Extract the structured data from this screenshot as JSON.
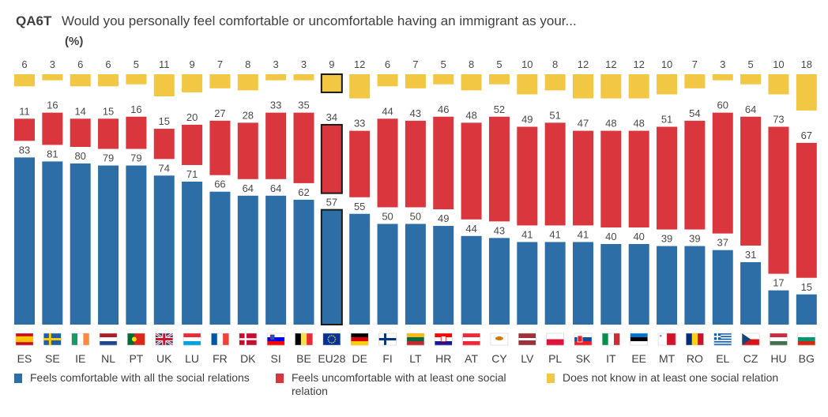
{
  "header": {
    "code": "QA6T",
    "title": "Would you personally feel comfortable or uncomfortable having an immigrant as your...",
    "unit": "(%)"
  },
  "colors": {
    "comfortable": "#2e6ea6",
    "uncomfortable": "#d9363e",
    "dont_know": "#f2c744",
    "highlight_border": "#1a1a1a"
  },
  "chart_data": {
    "type": "bar",
    "stacked": true,
    "categories": [
      "ES",
      "SE",
      "IE",
      "NL",
      "PT",
      "UK",
      "LU",
      "FR",
      "DK",
      "SI",
      "BE",
      "EU28",
      "DE",
      "FI",
      "LT",
      "HR",
      "AT",
      "CY",
      "LV",
      "PL",
      "SK",
      "IT",
      "EE",
      "MT",
      "RO",
      "EL",
      "CZ",
      "HU",
      "BG"
    ],
    "highlight": "EU28",
    "series": [
      {
        "name": "Feels comfortable with all the social relations",
        "values": [
          83,
          81,
          80,
          79,
          79,
          74,
          71,
          66,
          64,
          64,
          62,
          57,
          55,
          50,
          50,
          49,
          44,
          43,
          41,
          41,
          41,
          40,
          40,
          39,
          39,
          37,
          31,
          17,
          15
        ]
      },
      {
        "name": "Feels uncomfortable with at least one social relation",
        "values": [
          11,
          16,
          14,
          15,
          16,
          15,
          20,
          27,
          28,
          33,
          35,
          34,
          33,
          44,
          43,
          46,
          48,
          52,
          49,
          51,
          47,
          48,
          48,
          51,
          54,
          60,
          64,
          73,
          67
        ]
      },
      {
        "name": "Does not know in at least one social relation",
        "values": [
          6,
          3,
          6,
          6,
          5,
          11,
          9,
          7,
          8,
          3,
          3,
          9,
          12,
          6,
          7,
          5,
          8,
          5,
          10,
          8,
          12,
          12,
          12,
          10,
          7,
          3,
          5,
          10,
          18
        ]
      }
    ],
    "flags": {
      "ES": "flag-spain",
      "SE": "flag-sweden",
      "IE": "flag-ireland",
      "NL": "flag-netherlands",
      "PT": "flag-portugal",
      "UK": "flag-united-kingdom",
      "LU": "flag-luxembourg",
      "FR": "flag-france",
      "DK": "flag-denmark",
      "SI": "flag-slovenia",
      "BE": "flag-belgium",
      "EU28": "flag-european-union",
      "DE": "flag-germany",
      "FI": "flag-finland",
      "LT": "flag-lithuania",
      "HR": "flag-croatia",
      "AT": "flag-austria",
      "CY": "flag-cyprus",
      "LV": "flag-latvia",
      "PL": "flag-poland",
      "SK": "flag-slovakia",
      "IT": "flag-italy",
      "EE": "flag-estonia",
      "MT": "flag-malta",
      "RO": "flag-romania",
      "EL": "flag-greece",
      "CZ": "flag-czech-republic",
      "HU": "flag-hungary",
      "BG": "flag-bulgaria"
    },
    "legend_position": "bottom",
    "grid": false
  }
}
